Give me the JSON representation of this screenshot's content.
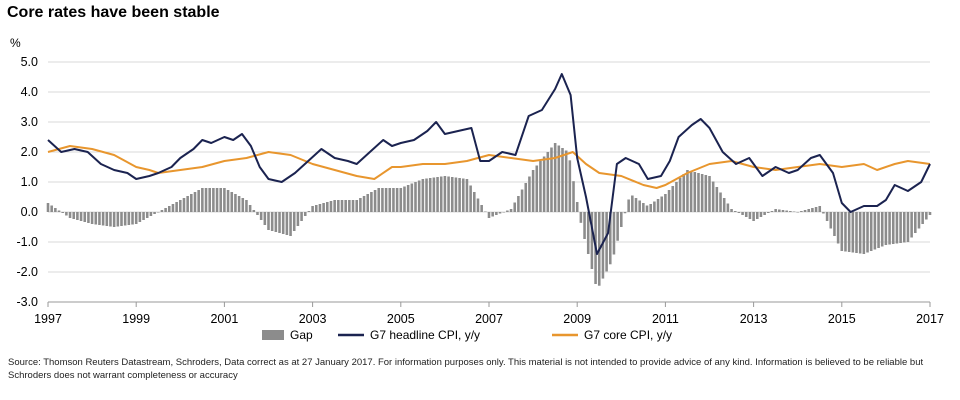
{
  "chart_data": {
    "type": "line",
    "title": "Core rates have been stable",
    "ylabel": "%",
    "xlim": [
      1997,
      2017
    ],
    "ylim": [
      -3.0,
      5.0
    ],
    "y_ticks": [
      "5.0",
      "4.0",
      "3.0",
      "2.0",
      "1.0",
      "0.0",
      "-1.0",
      "-2.0",
      "-3.0"
    ],
    "y_tick_values": [
      5,
      4,
      3,
      2,
      1,
      0,
      -1,
      -2,
      -3
    ],
    "x_ticks": [
      "1997",
      "1999",
      "2001",
      "2003",
      "2005",
      "2007",
      "2009",
      "2011",
      "2013",
      "2015",
      "2017"
    ],
    "x_tick_values": [
      1997,
      1999,
      2001,
      2003,
      2005,
      2007,
      2009,
      2011,
      2013,
      2015,
      2017
    ],
    "legend_position": "bottom",
    "colors": {
      "gap": "#8c8c8c",
      "headline": "#1b2350",
      "core": "#e8962e",
      "grid": "#d9d9d9"
    },
    "series": [
      {
        "name": "G7 headline CPI, y/y",
        "points": [
          [
            1997.0,
            2.4
          ],
          [
            1997.3,
            2.0
          ],
          [
            1997.6,
            2.1
          ],
          [
            1997.9,
            2.0
          ],
          [
            1998.2,
            1.6
          ],
          [
            1998.5,
            1.4
          ],
          [
            1998.8,
            1.3
          ],
          [
            1999.0,
            1.1
          ],
          [
            1999.3,
            1.2
          ],
          [
            1999.5,
            1.3
          ],
          [
            1999.8,
            1.5
          ],
          [
            2000.0,
            1.8
          ],
          [
            2000.3,
            2.1
          ],
          [
            2000.5,
            2.4
          ],
          [
            2000.7,
            2.3
          ],
          [
            2001.0,
            2.5
          ],
          [
            2001.2,
            2.4
          ],
          [
            2001.4,
            2.6
          ],
          [
            2001.6,
            2.2
          ],
          [
            2001.8,
            1.5
          ],
          [
            2002.0,
            1.1
          ],
          [
            2002.3,
            1.0
          ],
          [
            2002.6,
            1.3
          ],
          [
            2002.9,
            1.7
          ],
          [
            2003.2,
            2.1
          ],
          [
            2003.5,
            1.8
          ],
          [
            2003.8,
            1.7
          ],
          [
            2004.0,
            1.6
          ],
          [
            2004.3,
            2.0
          ],
          [
            2004.6,
            2.4
          ],
          [
            2004.8,
            2.2
          ],
          [
            2005.0,
            2.3
          ],
          [
            2005.3,
            2.4
          ],
          [
            2005.6,
            2.7
          ],
          [
            2005.8,
            3.0
          ],
          [
            2006.0,
            2.6
          ],
          [
            2006.3,
            2.7
          ],
          [
            2006.6,
            2.8
          ],
          [
            2006.8,
            1.7
          ],
          [
            2007.0,
            1.7
          ],
          [
            2007.3,
            2.0
          ],
          [
            2007.6,
            1.9
          ],
          [
            2007.9,
            3.2
          ],
          [
            2008.2,
            3.4
          ],
          [
            2008.5,
            4.1
          ],
          [
            2008.65,
            4.6
          ],
          [
            2008.85,
            3.9
          ],
          [
            2009.0,
            1.8
          ],
          [
            2009.2,
            0.5
          ],
          [
            2009.45,
            -1.4
          ],
          [
            2009.7,
            -0.7
          ],
          [
            2009.9,
            1.6
          ],
          [
            2010.1,
            1.8
          ],
          [
            2010.4,
            1.6
          ],
          [
            2010.6,
            1.1
          ],
          [
            2010.9,
            1.2
          ],
          [
            2011.1,
            1.7
          ],
          [
            2011.3,
            2.5
          ],
          [
            2011.6,
            2.9
          ],
          [
            2011.8,
            3.1
          ],
          [
            2012.0,
            2.8
          ],
          [
            2012.3,
            2.0
          ],
          [
            2012.6,
            1.6
          ],
          [
            2012.9,
            1.8
          ],
          [
            2013.2,
            1.2
          ],
          [
            2013.5,
            1.5
          ],
          [
            2013.8,
            1.3
          ],
          [
            2014.0,
            1.4
          ],
          [
            2014.3,
            1.8
          ],
          [
            2014.5,
            1.9
          ],
          [
            2014.8,
            1.3
          ],
          [
            2015.0,
            0.3
          ],
          [
            2015.2,
            0.0
          ],
          [
            2015.5,
            0.2
          ],
          [
            2015.8,
            0.2
          ],
          [
            2016.0,
            0.4
          ],
          [
            2016.2,
            0.9
          ],
          [
            2016.5,
            0.7
          ],
          [
            2016.8,
            1.0
          ],
          [
            2017.0,
            1.6
          ]
        ]
      },
      {
        "name": "G7 core CPI, y/y",
        "points": [
          [
            1997.0,
            2.0
          ],
          [
            1997.5,
            2.2
          ],
          [
            1998.0,
            2.1
          ],
          [
            1998.5,
            1.9
          ],
          [
            1999.0,
            1.5
          ],
          [
            1999.3,
            1.4
          ],
          [
            1999.5,
            1.3
          ],
          [
            2000.0,
            1.4
          ],
          [
            2000.5,
            1.5
          ],
          [
            2001.0,
            1.7
          ],
          [
            2001.5,
            1.8
          ],
          [
            2002.0,
            2.0
          ],
          [
            2002.5,
            1.9
          ],
          [
            2003.0,
            1.6
          ],
          [
            2003.5,
            1.4
          ],
          [
            2004.0,
            1.2
          ],
          [
            2004.4,
            1.1
          ],
          [
            2004.8,
            1.5
          ],
          [
            2005.0,
            1.5
          ],
          [
            2005.5,
            1.6
          ],
          [
            2006.0,
            1.6
          ],
          [
            2006.5,
            1.7
          ],
          [
            2007.0,
            1.9
          ],
          [
            2007.5,
            1.8
          ],
          [
            2008.0,
            1.7
          ],
          [
            2008.5,
            1.8
          ],
          [
            2008.9,
            2.0
          ],
          [
            2009.2,
            1.6
          ],
          [
            2009.5,
            1.3
          ],
          [
            2010.0,
            1.2
          ],
          [
            2010.5,
            0.9
          ],
          [
            2010.8,
            0.8
          ],
          [
            2011.0,
            0.9
          ],
          [
            2011.5,
            1.3
          ],
          [
            2012.0,
            1.6
          ],
          [
            2012.5,
            1.7
          ],
          [
            2013.0,
            1.5
          ],
          [
            2013.5,
            1.4
          ],
          [
            2014.0,
            1.5
          ],
          [
            2014.5,
            1.6
          ],
          [
            2015.0,
            1.5
          ],
          [
            2015.5,
            1.6
          ],
          [
            2015.8,
            1.4
          ],
          [
            2016.2,
            1.6
          ],
          [
            2016.5,
            1.7
          ],
          [
            2017.0,
            1.6
          ]
        ]
      }
    ],
    "bars": {
      "name": "Gap",
      "points": [
        [
          1997.0,
          0.3
        ],
        [
          1997.5,
          -0.2
        ],
        [
          1998.0,
          -0.4
        ],
        [
          1998.5,
          -0.5
        ],
        [
          1999.0,
          -0.4
        ],
        [
          1999.5,
          0.0
        ],
        [
          2000.0,
          0.4
        ],
        [
          2000.5,
          0.8
        ],
        [
          2001.0,
          0.8
        ],
        [
          2001.5,
          0.4
        ],
        [
          2002.0,
          -0.6
        ],
        [
          2002.5,
          -0.8
        ],
        [
          2003.0,
          0.2
        ],
        [
          2003.5,
          0.4
        ],
        [
          2004.0,
          0.4
        ],
        [
          2004.5,
          0.8
        ],
        [
          2005.0,
          0.8
        ],
        [
          2005.5,
          1.1
        ],
        [
          2006.0,
          1.2
        ],
        [
          2006.5,
          1.1
        ],
        [
          2007.0,
          -0.2
        ],
        [
          2007.5,
          0.1
        ],
        [
          2008.0,
          1.4
        ],
        [
          2008.5,
          2.3
        ],
        [
          2008.8,
          2.0
        ],
        [
          2009.1,
          -0.5
        ],
        [
          2009.45,
          -2.6
        ],
        [
          2009.8,
          -1.6
        ],
        [
          2010.2,
          0.6
        ],
        [
          2010.6,
          0.2
        ],
        [
          2011.0,
          0.6
        ],
        [
          2011.5,
          1.4
        ],
        [
          2012.0,
          1.2
        ],
        [
          2012.5,
          0.1
        ],
        [
          2013.0,
          -0.3
        ],
        [
          2013.5,
          0.1
        ],
        [
          2014.0,
          0.0
        ],
        [
          2014.5,
          0.2
        ],
        [
          2015.0,
          -1.3
        ],
        [
          2015.5,
          -1.4
        ],
        [
          2016.0,
          -1.1
        ],
        [
          2016.5,
          -1.0
        ],
        [
          2017.0,
          -0.1
        ]
      ]
    }
  },
  "source_note": "Source: Thomson Reuters Datastream, Schroders, Data correct as at 27 January 2017. For information purposes only.  This material is not intended to provide advice of any kind.  Information is believed to be reliable but Schroders does not warrant  completeness or accuracy"
}
